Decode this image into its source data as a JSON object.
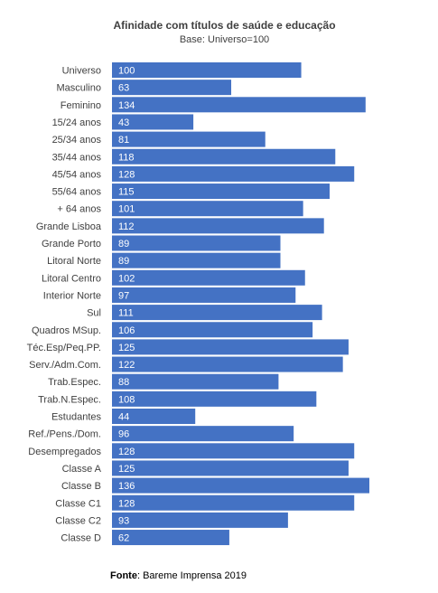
{
  "chart_data": {
    "type": "bar",
    "orientation": "horizontal",
    "title": "Afinidade com títulos de saúde e educação",
    "subtitle": "Base: Universo=100",
    "categories": [
      "Universo",
      "Masculino",
      "Feminino",
      "15/24 anos",
      "25/34 anos",
      "35/44 anos",
      "45/54 anos",
      "55/64 anos",
      "+ 64 anos",
      "Grande Lisboa",
      "Grande Porto",
      "Litoral Norte",
      "Litoral Centro",
      "Interior Norte",
      "Sul",
      "Quadros MSup.",
      "Téc.Esp/Peq.PP.",
      "Serv./Adm.Com.",
      "Trab.Espec.",
      "Trab.N.Espec.",
      "Estudantes",
      "Ref./Pens./Dom.",
      "Desempregados",
      "Classe A",
      "Classe B",
      "Classe C1",
      "Classe C2",
      "Classe D"
    ],
    "values": [
      100,
      63,
      134,
      43,
      81,
      118,
      128,
      115,
      101,
      112,
      89,
      89,
      102,
      97,
      111,
      106,
      125,
      122,
      88,
      108,
      44,
      96,
      128,
      125,
      136,
      128,
      93,
      62
    ],
    "bar_color": "#4472C4",
    "label_color": "#ffffff",
    "xlim": [
      0,
      136
    ],
    "grid": false,
    "data_labels": true
  },
  "source": {
    "label": "Fonte",
    "text": ": Bareme Imprensa 2019"
  }
}
